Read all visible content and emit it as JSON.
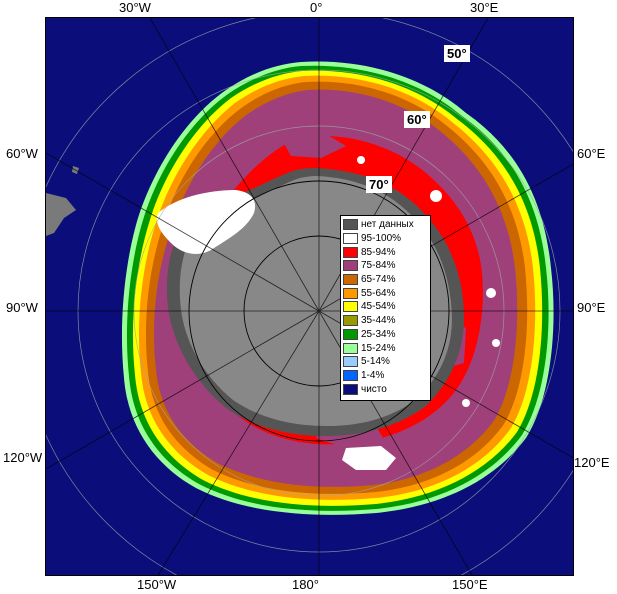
{
  "map": {
    "lon_labels": {
      "top_30w": "30°W",
      "top_0": "0°",
      "top_30e": "30°E",
      "left_60w": "60°W",
      "left_90w": "90°W",
      "left_120w": "120°W",
      "right_60e": "60°E",
      "right_90e": "90°E",
      "right_120e": "120°E",
      "bottom_150w": "150°W",
      "bottom_180": "180°",
      "bottom_150e": "150°E"
    },
    "lat_labels": {
      "lat50": "50°",
      "lat60": "60°",
      "lat70": "70°"
    }
  },
  "legend": {
    "items": [
      {
        "label": "нет данных",
        "color": "#555555"
      },
      {
        "label": "95-100%",
        "color": "#ffffff"
      },
      {
        "label": "85-94%",
        "color": "#ff0000"
      },
      {
        "label": "75-84%",
        "color": "#a0407a"
      },
      {
        "label": "65-74%",
        "color": "#cc6600"
      },
      {
        "label": "55-64%",
        "color": "#ff9900"
      },
      {
        "label": "45-54%",
        "color": "#ffff00"
      },
      {
        "label": "35-44%",
        "color": "#999900"
      },
      {
        "label": "25-34%",
        "color": "#009900"
      },
      {
        "label": "15-24%",
        "color": "#99ff99"
      },
      {
        "label": "5-14%",
        "color": "#99ccff"
      },
      {
        "label": "1-4%",
        "color": "#0066ff"
      },
      {
        "label": "чисто",
        "color": "#0b0e7a"
      }
    ]
  },
  "colors": {
    "ocean": "#0b0e7a",
    "land": "#888888",
    "no_data": "#555555",
    "ice_95": "#ffffff",
    "ice_85": "#ff0000",
    "ice_75": "#a0407a",
    "ice_65": "#cc6600",
    "ice_55": "#ff9900",
    "ice_45": "#ffff00",
    "ice_25": "#009900",
    "ice_15": "#99ff99",
    "ice_5": "#99ccff",
    "other_land": "#7a7a7a"
  }
}
